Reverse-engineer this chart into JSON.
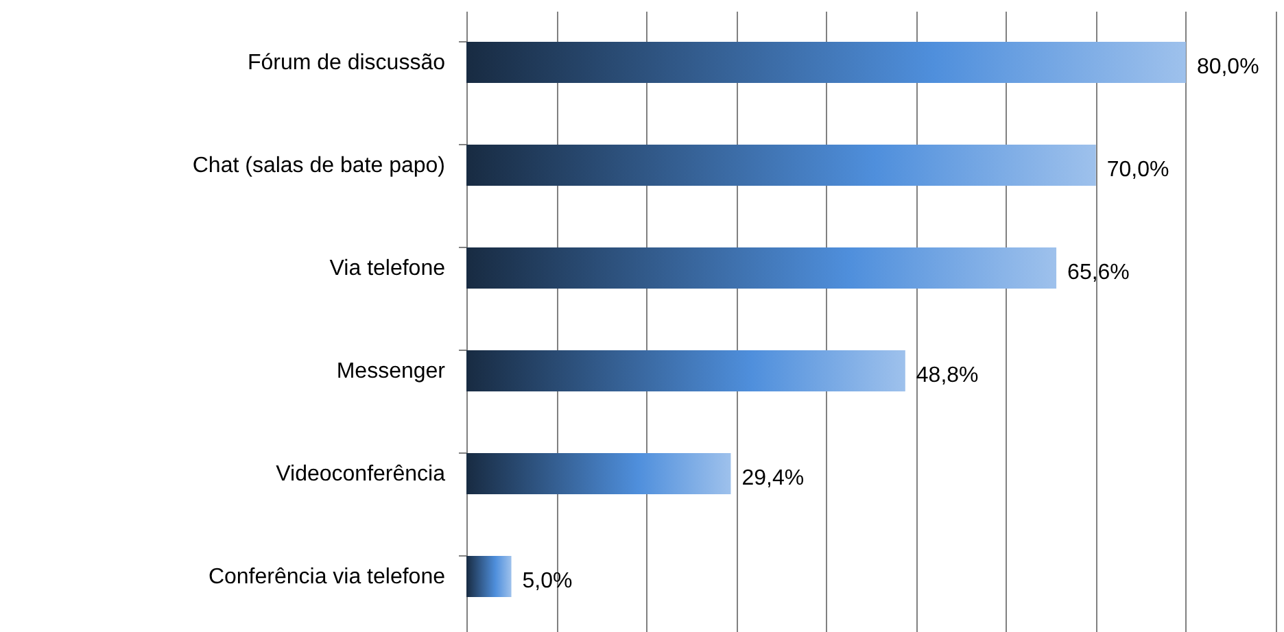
{
  "chart_data": {
    "type": "bar",
    "orientation": "horizontal",
    "categories": [
      "Fórum de discussão",
      "Chat (salas de bate papo)",
      "Via telefone",
      "Messenger",
      "Videoconferência",
      "Conferência via telefone"
    ],
    "values": [
      80.0,
      70.0,
      65.6,
      48.8,
      29.4,
      5.0
    ],
    "value_labels": [
      "80,0%",
      "70,0%",
      "65,6%",
      "48,8%",
      "29,4%",
      "5,0%"
    ],
    "color": "#4f8fdc",
    "xlim": [
      0,
      90
    ],
    "xticks": [
      {
        "value": 0,
        "label": null
      },
      {
        "value": 10,
        "label": null
      },
      {
        "value": 20,
        "label": null
      },
      {
        "value": 30,
        "label": null
      },
      {
        "value": 40,
        "label": null
      },
      {
        "value": 50,
        "label": null
      },
      {
        "value": 60,
        "label": null
      },
      {
        "value": 70,
        "label": null
      },
      {
        "value": 80,
        "label": null
      },
      {
        "value": 90,
        "label": null
      }
    ],
    "grid": "x"
  }
}
